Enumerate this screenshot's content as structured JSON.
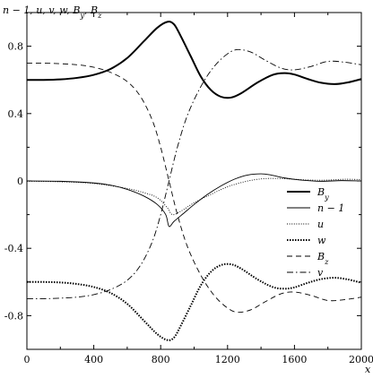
{
  "chart_data": {
    "type": "line",
    "ylabel": "n − 1, u, v, w, B_y, B_z",
    "xlabel": "x",
    "xlim": [
      0,
      2000
    ],
    "ylim": [
      -1.0,
      1.0
    ],
    "x_ticks": [
      0,
      400,
      800,
      1200,
      1600,
      2000
    ],
    "x_tick_labels": [
      "0",
      "400",
      "800",
      "1200",
      "1600",
      "2000"
    ],
    "y_ticks": [
      0.8,
      0.4,
      0,
      -0.4,
      -0.8
    ],
    "y_tick_labels": [
      "0.8",
      "0.4",
      "0",
      "-0.4",
      "-0.8"
    ],
    "grid": false,
    "legend_position": "right",
    "series": [
      {
        "name": "B_y",
        "legend_label": "B",
        "legend_sub": "y",
        "style": "thick-solid",
        "color": "#000000",
        "points": [
          [
            0,
            0.6
          ],
          [
            100,
            0.6
          ],
          [
            200,
            0.603
          ],
          [
            300,
            0.612
          ],
          [
            400,
            0.63
          ],
          [
            500,
            0.665
          ],
          [
            600,
            0.73
          ],
          [
            700,
            0.83
          ],
          [
            780,
            0.91
          ],
          [
            840,
            0.945
          ],
          [
            880,
            0.93
          ],
          [
            920,
            0.86
          ],
          [
            980,
            0.74
          ],
          [
            1040,
            0.62
          ],
          [
            1100,
            0.54
          ],
          [
            1160,
            0.5
          ],
          [
            1220,
            0.495
          ],
          [
            1280,
            0.52
          ],
          [
            1380,
            0.585
          ],
          [
            1470,
            0.63
          ],
          [
            1540,
            0.64
          ],
          [
            1600,
            0.632
          ],
          [
            1680,
            0.605
          ],
          [
            1760,
            0.583
          ],
          [
            1840,
            0.575
          ],
          [
            1920,
            0.585
          ],
          [
            2000,
            0.605
          ]
        ]
      },
      {
        "name": "n − 1",
        "legend_label": "n − 1",
        "legend_sub": "",
        "style": "thin-solid",
        "color": "#000000",
        "points": [
          [
            0,
            0
          ],
          [
            200,
            -0.002
          ],
          [
            400,
            -0.012
          ],
          [
            500,
            -0.025
          ],
          [
            600,
            -0.05
          ],
          [
            700,
            -0.09
          ],
          [
            780,
            -0.14
          ],
          [
            830,
            -0.2
          ],
          [
            850,
            -0.27
          ],
          [
            880,
            -0.24
          ],
          [
            940,
            -0.19
          ],
          [
            1000,
            -0.14
          ],
          [
            1080,
            -0.08
          ],
          [
            1160,
            -0.03
          ],
          [
            1240,
            0.01
          ],
          [
            1320,
            0.035
          ],
          [
            1400,
            0.042
          ],
          [
            1460,
            0.035
          ],
          [
            1540,
            0.018
          ],
          [
            1640,
            0.005
          ],
          [
            1760,
            -0.002
          ],
          [
            1880,
            0.002
          ],
          [
            2000,
            0
          ]
        ]
      },
      {
        "name": "u",
        "legend_label": "u",
        "legend_sub": "",
        "style": "dotted",
        "color": "#000000",
        "points": [
          [
            0,
            -0.002
          ],
          [
            200,
            -0.005
          ],
          [
            400,
            -0.015
          ],
          [
            600,
            -0.045
          ],
          [
            700,
            -0.07
          ],
          [
            780,
            -0.1
          ],
          [
            840,
            -0.16
          ],
          [
            870,
            -0.2
          ],
          [
            920,
            -0.18
          ],
          [
            1000,
            -0.13
          ],
          [
            1100,
            -0.08
          ],
          [
            1200,
            -0.035
          ],
          [
            1300,
            -0.005
          ],
          [
            1400,
            0.012
          ],
          [
            1500,
            0.015
          ],
          [
            1600,
            0.01
          ],
          [
            1700,
            0.005
          ],
          [
            1800,
            0.005
          ],
          [
            1900,
            0.01
          ],
          [
            2000,
            0.008
          ]
        ]
      },
      {
        "name": "w",
        "legend_label": "w",
        "legend_sub": "",
        "style": "heavy-dotted",
        "color": "#000000",
        "points": [
          [
            0,
            -0.6
          ],
          [
            100,
            -0.6
          ],
          [
            200,
            -0.603
          ],
          [
            300,
            -0.612
          ],
          [
            400,
            -0.63
          ],
          [
            500,
            -0.665
          ],
          [
            600,
            -0.73
          ],
          [
            700,
            -0.83
          ],
          [
            780,
            -0.91
          ],
          [
            840,
            -0.945
          ],
          [
            880,
            -0.93
          ],
          [
            920,
            -0.86
          ],
          [
            980,
            -0.74
          ],
          [
            1040,
            -0.62
          ],
          [
            1100,
            -0.54
          ],
          [
            1160,
            -0.5
          ],
          [
            1220,
            -0.495
          ],
          [
            1280,
            -0.52
          ],
          [
            1380,
            -0.585
          ],
          [
            1470,
            -0.63
          ],
          [
            1540,
            -0.64
          ],
          [
            1600,
            -0.632
          ],
          [
            1680,
            -0.605
          ],
          [
            1760,
            -0.583
          ],
          [
            1840,
            -0.575
          ],
          [
            1920,
            -0.585
          ],
          [
            2000,
            -0.605
          ]
        ]
      },
      {
        "name": "B_z",
        "legend_label": "B",
        "legend_sub": "z",
        "style": "dashed",
        "color": "#000000",
        "points": [
          [
            0,
            0.7
          ],
          [
            150,
            0.698
          ],
          [
            300,
            0.69
          ],
          [
            400,
            0.675
          ],
          [
            500,
            0.645
          ],
          [
            600,
            0.59
          ],
          [
            680,
            0.5
          ],
          [
            750,
            0.36
          ],
          [
            800,
            0.2
          ],
          [
            850,
            0.0
          ],
          [
            900,
            -0.2
          ],
          [
            960,
            -0.39
          ],
          [
            1040,
            -0.56
          ],
          [
            1120,
            -0.68
          ],
          [
            1200,
            -0.755
          ],
          [
            1260,
            -0.78
          ],
          [
            1340,
            -0.765
          ],
          [
            1420,
            -0.72
          ],
          [
            1520,
            -0.67
          ],
          [
            1600,
            -0.66
          ],
          [
            1700,
            -0.68
          ],
          [
            1800,
            -0.71
          ],
          [
            1900,
            -0.705
          ],
          [
            2000,
            -0.69
          ]
        ]
      },
      {
        "name": "v",
        "legend_label": "v",
        "legend_sub": "",
        "style": "dash-dot",
        "color": "#000000",
        "points": [
          [
            0,
            -0.7
          ],
          [
            150,
            -0.698
          ],
          [
            300,
            -0.69
          ],
          [
            400,
            -0.675
          ],
          [
            500,
            -0.645
          ],
          [
            600,
            -0.59
          ],
          [
            680,
            -0.5
          ],
          [
            750,
            -0.36
          ],
          [
            800,
            -0.2
          ],
          [
            850,
            0.0
          ],
          [
            900,
            0.2
          ],
          [
            960,
            0.39
          ],
          [
            1040,
            0.56
          ],
          [
            1120,
            0.68
          ],
          [
            1200,
            0.755
          ],
          [
            1260,
            0.78
          ],
          [
            1340,
            0.765
          ],
          [
            1420,
            0.72
          ],
          [
            1520,
            0.67
          ],
          [
            1600,
            0.66
          ],
          [
            1700,
            0.68
          ],
          [
            1800,
            0.71
          ],
          [
            1900,
            0.705
          ],
          [
            2000,
            0.69
          ]
        ]
      }
    ]
  }
}
